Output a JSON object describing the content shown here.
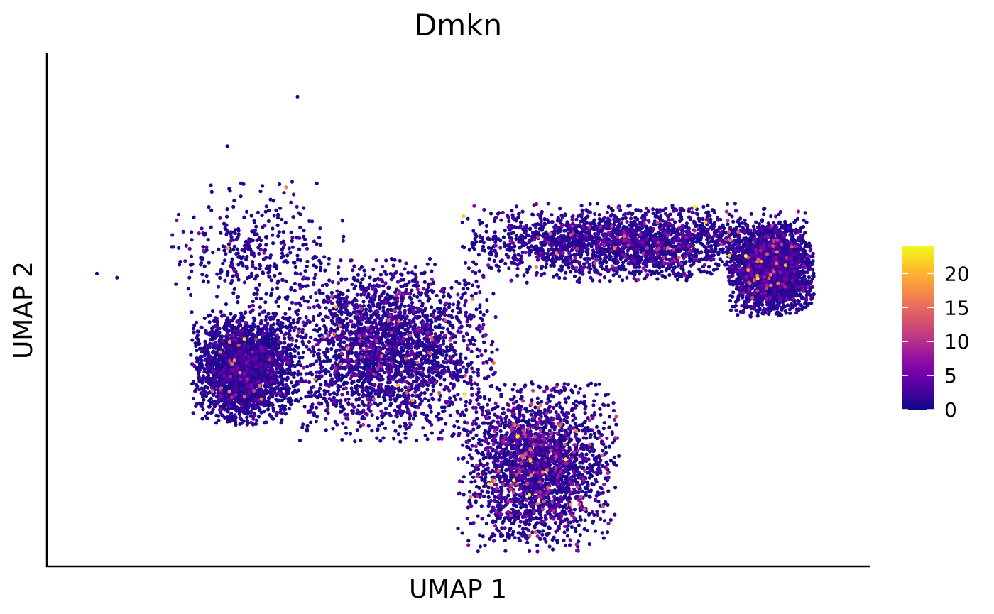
{
  "chart_data": {
    "type": "scatter",
    "title": "Dmkn",
    "xlabel": "UMAP 1",
    "ylabel": "UMAP 2",
    "grid": false,
    "show_tick_labels": false,
    "legend_placement": "right",
    "colorbar": {
      "min": 0,
      "max": 24,
      "ticks": [
        0,
        5,
        10,
        15,
        20
      ],
      "tick_labels": [
        "0",
        "5",
        "10",
        "15",
        "20"
      ],
      "colormap": "plasma",
      "stops": [
        "#0d0887",
        "#41049d",
        "#6a00a8",
        "#8f0da4",
        "#b12a90",
        "#cc4778",
        "#e16462",
        "#f2844b",
        "#fca636",
        "#fcce25",
        "#f0f921"
      ]
    },
    "clusters": [
      {
        "region": "left-mass",
        "x": [
          -5.2,
          -3.3
        ],
        "y": [
          -1.6,
          0.8
        ],
        "density": 1.0,
        "expression_mean": 0.4
      },
      {
        "region": "central-mass",
        "x": [
          -3.3,
          0.5
        ],
        "y": [
          -1.9,
          2.0
        ],
        "density": 1.0,
        "expression_mean": 1.1
      },
      {
        "region": "lower-lobe",
        "x": [
          0.2,
          3.0
        ],
        "y": [
          -4.6,
          -1.0
        ],
        "density": 0.9,
        "expression_mean": 2.2
      },
      {
        "region": "upper-arc",
        "x": [
          0.5,
          6.5
        ],
        "y": [
          1.8,
          3.5
        ],
        "density": 0.9,
        "expression_mean": 1.0
      },
      {
        "region": "right-tip",
        "x": [
          5.5,
          7.0
        ],
        "y": [
          1.0,
          3.0
        ],
        "density": 1.0,
        "expression_mean": 0.5
      },
      {
        "region": "sparse-upper-left",
        "x": [
          -5.5,
          -2.5
        ],
        "y": [
          0.8,
          4.0
        ],
        "density": 0.15,
        "expression_mean": 0.3
      }
    ],
    "outlier_points": [
      {
        "x": -3.2,
        "y": 6.2,
        "value": 0
      },
      {
        "x": -4.6,
        "y": 5.0,
        "value": 0
      },
      {
        "x": -7.2,
        "y": 1.9,
        "value": 0
      },
      {
        "x": -6.8,
        "y": 1.8,
        "value": 0
      },
      {
        "x": 0.0,
        "y": -4.3,
        "value": 0
      }
    ]
  }
}
